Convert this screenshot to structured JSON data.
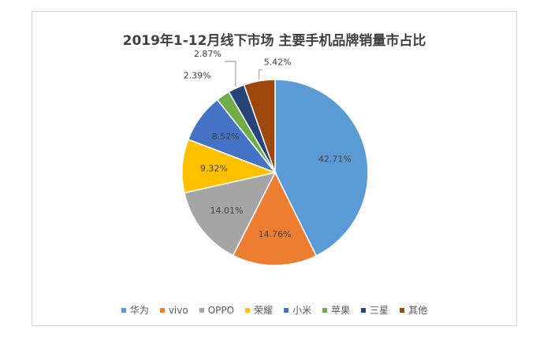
{
  "chart_data": {
    "type": "pie",
    "title": "2019年1-12月线下市场 主要手机品牌销量市占比",
    "slices": [
      {
        "name": "华为",
        "value": 42.71,
        "label": "42.71%",
        "color": "#5b9bd5"
      },
      {
        "name": "vivo",
        "value": 14.76,
        "label": "14.76%",
        "color": "#ed7d31"
      },
      {
        "name": "OPPO",
        "value": 14.01,
        "label": "14.01%",
        "color": "#a5a5a5"
      },
      {
        "name": "荣耀",
        "value": 9.32,
        "label": "9.32%",
        "color": "#ffc000"
      },
      {
        "name": "小米",
        "value": 8.52,
        "label": "8.52%",
        "color": "#4472c4"
      },
      {
        "name": "苹果",
        "value": 2.39,
        "label": "2.39%",
        "color": "#70ad47"
      },
      {
        "name": "三星",
        "value": 2.87,
        "label": "2.87%",
        "color": "#264478"
      },
      {
        "name": "其他",
        "value": 5.42,
        "label": "5.42%",
        "color": "#9e480e"
      }
    ],
    "legend_position": "bottom"
  }
}
